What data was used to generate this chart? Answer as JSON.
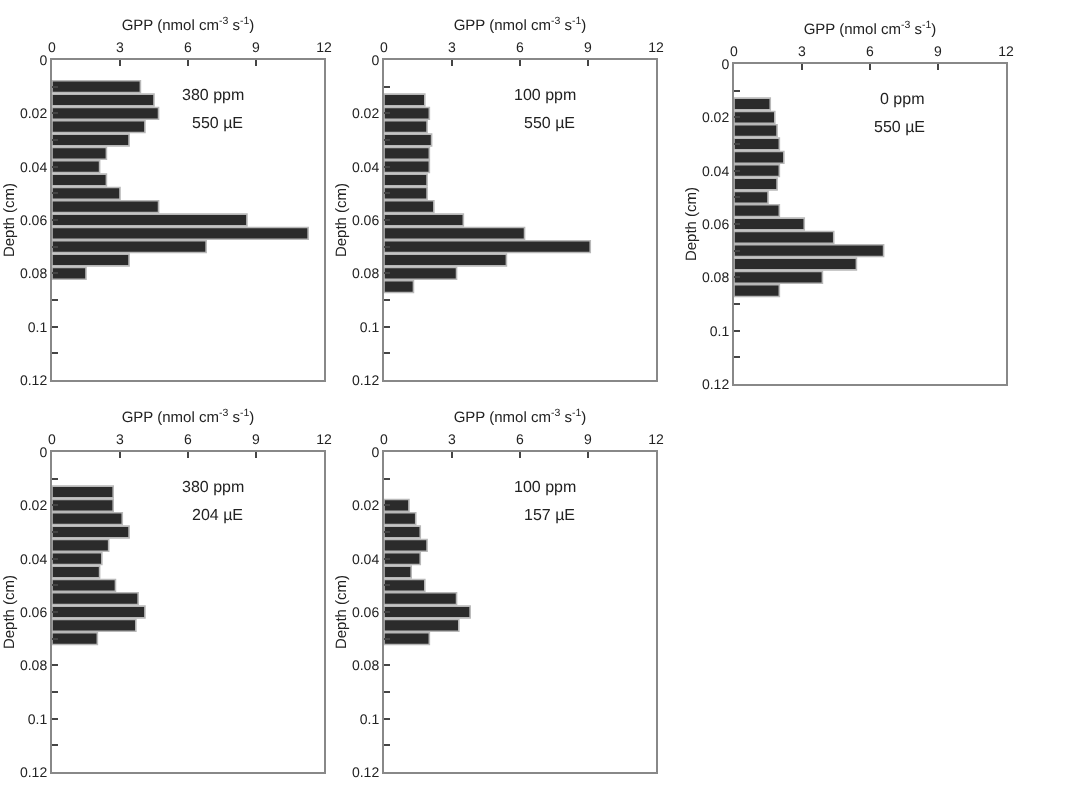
{
  "chart_data": [
    {
      "type": "bar",
      "orientation": "horizontal",
      "xlabel": "GPP (nmol cm$^{-3}$ s$^{-1}$)",
      "ylabel": "Depth (cm)",
      "annotations": [
        "380 ppm",
        "550 µE"
      ],
      "x": [
        0.01,
        0.015,
        0.02,
        0.025,
        0.03,
        0.035,
        0.04,
        0.045,
        0.05,
        0.055,
        0.06,
        0.065,
        0.07,
        0.075,
        0.08
      ],
      "values": [
        3.9,
        4.5,
        4.7,
        4.1,
        3.4,
        2.4,
        2.1,
        2.4,
        3.0,
        4.7,
        8.6,
        11.3,
        6.8,
        3.4,
        1.5
      ],
      "color": "#2b2b2b",
      "xlim": [
        0,
        12
      ],
      "xticks": [
        0,
        3,
        6,
        9,
        12
      ],
      "ylim": [
        0.12,
        0
      ],
      "yticks": [
        0,
        {
          "value": 0.01,
          "label": null
        },
        0.02,
        {
          "value": 0.03,
          "label": null
        },
        0.04,
        {
          "value": 0.05,
          "label": null
        },
        0.06,
        {
          "value": 0.07,
          "label": null
        },
        0.08,
        {
          "value": 0.09,
          "label": null
        },
        0.1,
        {
          "value": 0.11,
          "label": null
        },
        0.12
      ],
      "grid": false
    },
    {
      "type": "bar",
      "orientation": "horizontal",
      "xlabel": "GPP (nmol cm$^{-3}$ s$^{-1}$)",
      "ylabel": "Depth (cm)",
      "annotations": [
        "100 ppm",
        "550 µE"
      ],
      "x": [
        0.015,
        0.02,
        0.025,
        0.03,
        0.035,
        0.04,
        0.045,
        0.05,
        0.055,
        0.06,
        0.065,
        0.07,
        0.075,
        0.08,
        0.085
      ],
      "values": [
        1.8,
        2.0,
        1.9,
        2.1,
        2.0,
        2.0,
        1.9,
        1.9,
        2.2,
        3.5,
        6.2,
        9.1,
        5.4,
        3.2,
        1.3
      ],
      "color": "#2b2b2b",
      "xlim": [
        0,
        12
      ],
      "xticks": [
        0,
        3,
        6,
        9,
        12
      ],
      "ylim": [
        0.12,
        0
      ],
      "yticks": [
        0,
        {
          "value": 0.01,
          "label": null
        },
        0.02,
        {
          "value": 0.03,
          "label": null
        },
        0.04,
        {
          "value": 0.05,
          "label": null
        },
        0.06,
        {
          "value": 0.07,
          "label": null
        },
        0.08,
        {
          "value": 0.09,
          "label": null
        },
        0.1,
        {
          "value": 0.11,
          "label": null
        },
        0.12
      ],
      "grid": false
    },
    {
      "type": "bar",
      "orientation": "horizontal",
      "xlabel": "GPP (nmol cm$^{-3}$ s$^{-1}$)",
      "ylabel": "Depth (cm)",
      "annotations": [
        "0 ppm",
        "550 µE"
      ],
      "x": [
        0.015,
        0.02,
        0.025,
        0.03,
        0.035,
        0.04,
        0.045,
        0.05,
        0.055,
        0.06,
        0.065,
        0.07,
        0.075,
        0.08,
        0.085
      ],
      "values": [
        1.6,
        1.8,
        1.9,
        2.0,
        2.2,
        2.0,
        1.9,
        1.5,
        2.0,
        3.1,
        4.4,
        6.6,
        5.4,
        3.9,
        2.0
      ],
      "color": "#2b2b2b",
      "xlim": [
        0,
        12
      ],
      "xticks": [
        0,
        3,
        6,
        9,
        12
      ],
      "ylim": [
        0.12,
        0
      ],
      "yticks": [
        0,
        {
          "value": 0.01,
          "label": null
        },
        0.02,
        {
          "value": 0.03,
          "label": null
        },
        0.04,
        {
          "value": 0.05,
          "label": null
        },
        0.06,
        {
          "value": 0.07,
          "label": null
        },
        0.08,
        {
          "value": 0.09,
          "label": null
        },
        0.1,
        {
          "value": 0.11,
          "label": null
        },
        0.12
      ],
      "grid": false
    },
    {
      "type": "bar",
      "orientation": "horizontal",
      "xlabel": "GPP (nmol cm$^{-3}$ s$^{-1}$)",
      "ylabel": "Depth (cm)",
      "annotations": [
        "380 ppm",
        "204 µE"
      ],
      "x": [
        0.015,
        0.02,
        0.025,
        0.03,
        0.035,
        0.04,
        0.045,
        0.05,
        0.055,
        0.06,
        0.065,
        0.07
      ],
      "values": [
        2.7,
        2.7,
        3.1,
        3.4,
        2.5,
        2.2,
        2.1,
        2.8,
        3.8,
        4.1,
        3.7,
        2.0
      ],
      "color": "#2b2b2b",
      "xlim": [
        0,
        12
      ],
      "xticks": [
        0,
        3,
        6,
        9,
        12
      ],
      "ylim": [
        0.12,
        0
      ],
      "yticks": [
        0,
        {
          "value": 0.01,
          "label": null
        },
        0.02,
        {
          "value": 0.03,
          "label": null
        },
        0.04,
        {
          "value": 0.05,
          "label": null
        },
        0.06,
        {
          "value": 0.07,
          "label": null
        },
        0.08,
        {
          "value": 0.09,
          "label": null
        },
        0.1,
        {
          "value": 0.11,
          "label": null
        },
        0.12
      ],
      "grid": false
    },
    {
      "type": "bar",
      "orientation": "horizontal",
      "xlabel": "GPP (nmol cm$^{-3}$ s$^{-1}$)",
      "ylabel": "Depth (cm)",
      "annotations": [
        "100 ppm",
        "157 µE"
      ],
      "x": [
        0.02,
        0.025,
        0.03,
        0.035,
        0.04,
        0.045,
        0.05,
        0.055,
        0.06,
        0.065,
        0.07
      ],
      "values": [
        1.1,
        1.4,
        1.6,
        1.9,
        1.6,
        1.2,
        1.8,
        3.2,
        3.8,
        3.3,
        2.0
      ],
      "color": "#2b2b2b",
      "xlim": [
        0,
        12
      ],
      "xticks": [
        0,
        3,
        6,
        9,
        12
      ],
      "ylim": [
        0.12,
        0
      ],
      "yticks": [
        0,
        {
          "value": 0.01,
          "label": null
        },
        0.02,
        {
          "value": 0.03,
          "label": null
        },
        0.04,
        {
          "value": 0.05,
          "label": null
        },
        0.06,
        {
          "value": 0.07,
          "label": null
        },
        0.08,
        {
          "value": 0.09,
          "label": null
        },
        0.1,
        {
          "value": 0.11,
          "label": null
        },
        0.12
      ],
      "grid": false
    }
  ]
}
